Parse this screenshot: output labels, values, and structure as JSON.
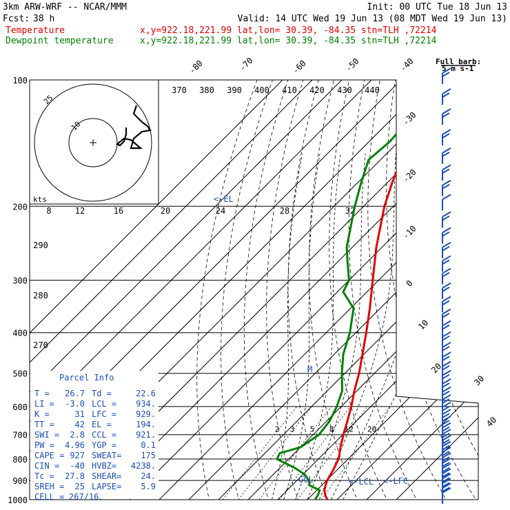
{
  "header": {
    "model": "3km ARW-WRF -- NCAR/MMM",
    "init": "Init: 00 UTC Tue 18 Jun 13",
    "fcst_label": "Fcst:",
    "fcst_value": "38 h",
    "valid": "Valid: 14 UTC Wed 19 Jun 13 (08 MDT Wed 19 Jun 13)"
  },
  "legend": [
    {
      "name": "Temperature",
      "info": "x,y=922.18,221.99   lat,lon= 30.39, -84.35   stn=TLH ,72214",
      "color": "#e00000"
    },
    {
      "name": "Dewpoint temperature",
      "info": "x,y=922.18,221.99   lat,lon= 30.39, -84.35   stn=TLH ,72214",
      "color": "#008000"
    }
  ],
  "barb_key": {
    "line1": "Full barb:",
    "line2": "5 m s-1"
  },
  "chart_data": {
    "type": "line",
    "diagram": "skew-T log-P",
    "pressure_levels": [
      100,
      200,
      300,
      400,
      500,
      600,
      700,
      800,
      900,
      1000
    ],
    "temperature_isotherm_labels": [
      "-80",
      "-70",
      "-60",
      "-50",
      "-40",
      "-30",
      "-20",
      "-10",
      "0",
      "10",
      "20",
      "30",
      "40"
    ],
    "theta_labels": [
      "370",
      "380",
      "390",
      "400",
      "410",
      "420",
      "430",
      "440"
    ],
    "theta_side_labels": [
      "290",
      "280",
      "270"
    ],
    "mixing_ratio_labels": [
      "2",
      "3",
      "5",
      "8",
      "12",
      "20"
    ],
    "hodograph": {
      "unit_label": "kts",
      "ring_labels": [
        "10",
        "25"
      ],
      "speed_axis_labels": [
        "8",
        "12",
        "16",
        "20",
        "24",
        "28",
        "32"
      ],
      "points": [
        [
          16.5,
          11
        ],
        [
          16.5,
          6
        ],
        [
          15,
          1
        ],
        [
          12,
          -2
        ],
        [
          10,
          -1
        ],
        [
          15,
          3
        ],
        [
          20,
          2
        ],
        [
          27,
          -4
        ],
        [
          20,
          -4
        ],
        [
          22,
          3
        ],
        [
          28,
          8
        ],
        [
          34,
          9
        ],
        [
          32,
          12
        ],
        [
          28,
          15
        ],
        [
          25,
          18
        ],
        [
          22,
          21
        ],
        [
          24,
          27
        ]
      ]
    },
    "series": [
      {
        "name": "Temperature",
        "color": "#e00000",
        "points": [
          [
            1000,
            26.7
          ],
          [
            975,
            24.5
          ],
          [
            950,
            22.6
          ],
          [
            925,
            21.3
          ],
          [
            900,
            20.2
          ],
          [
            850,
            18.7
          ],
          [
            800,
            16.8
          ],
          [
            750,
            13.5
          ],
          [
            700,
            10.2
          ],
          [
            650,
            7.0
          ],
          [
            600,
            3.4
          ],
          [
            550,
            -0.9
          ],
          [
            500,
            -5.2
          ],
          [
            450,
            -10.5
          ],
          [
            400,
            -16.5
          ],
          [
            350,
            -23.5
          ],
          [
            300,
            -32.0
          ],
          [
            250,
            -42.0
          ],
          [
            200,
            -53.0
          ],
          [
            175,
            -58.5
          ],
          [
            150,
            -64.0
          ],
          [
            130,
            -67.0
          ],
          [
            115,
            -68.0
          ],
          [
            100,
            -71.0
          ]
        ]
      },
      {
        "name": "Dewpoint temperature",
        "color": "#008000",
        "points": [
          [
            1000,
            22.6
          ],
          [
            975,
            22.0
          ],
          [
            950,
            21.0
          ],
          [
            925,
            16.0
          ],
          [
            900,
            14.0
          ],
          [
            870,
            10.5
          ],
          [
            840,
            5.0
          ],
          [
            800,
            -4.0
          ],
          [
            775,
            -5.0
          ],
          [
            750,
            0.0
          ],
          [
            700,
            2.0
          ],
          [
            650,
            1.0
          ],
          [
            600,
            -1.5
          ],
          [
            550,
            -5.0
          ],
          [
            500,
            -11.0
          ],
          [
            450,
            -17.0
          ],
          [
            400,
            -22.0
          ],
          [
            350,
            -29.0
          ],
          [
            320,
            -38.0
          ],
          [
            300,
            -40.0
          ],
          [
            270,
            -47.0
          ],
          [
            250,
            -52.0
          ],
          [
            200,
            -63.0
          ],
          [
            175,
            -69.0
          ],
          [
            155,
            -74.0
          ],
          [
            140,
            -73.0
          ],
          [
            125,
            -74.0
          ],
          [
            100,
            -76.0
          ]
        ]
      }
    ],
    "level_markers": [
      "<-EL",
      "<-LFC",
      "<-LCL",
      "CCL"
    ],
    "wind_barbs_pressure": [
      1000,
      975,
      950,
      925,
      900,
      875,
      850,
      825,
      800,
      775,
      750,
      725,
      700,
      675,
      650,
      625,
      600,
      575,
      550,
      525,
      500,
      475,
      450,
      425,
      400,
      375,
      350,
      325,
      300,
      280,
      260,
      240,
      220,
      200,
      185,
      170,
      155,
      140,
      125,
      112,
      100
    ],
    "wind_barbs_speed_ms": [
      5,
      10,
      10,
      10,
      10,
      10,
      10,
      10,
      10,
      10,
      10,
      10,
      10,
      10,
      10,
      10,
      10,
      10,
      10,
      10,
      10,
      10,
      10,
      10,
      10,
      10,
      10,
      10,
      10,
      10,
      10,
      10,
      10,
      5,
      10,
      10,
      10,
      10,
      10,
      10,
      10
    ]
  },
  "parcel_info": {
    "title": "Parcel Info",
    "rows": [
      {
        "k1": "T   =",
        "v1": "26.7",
        "k2": "Td  =",
        "v2": "22.6"
      },
      {
        "k1": "LI  =",
        "v1": "-3.0",
        "k2": "LCL =",
        "v2": "934."
      },
      {
        "k1": "K   =",
        "v1": "31",
        "k2": "LFC =",
        "v2": "929."
      },
      {
        "k1": "TT  =",
        "v1": "42",
        "k2": "EL  =",
        "v2": "194."
      },
      {
        "k1": "SWI =",
        "v1": "2.8",
        "k2": "CCL =",
        "v2": "921."
      },
      {
        "k1": "PW  =",
        "v1": "4.96",
        "k2": "YGP =",
        "v2": "0.1"
      },
      {
        "k1": "CAPE =",
        "v1": "927",
        "k2": "SWEAT=",
        "v2": "175"
      },
      {
        "k1": "CIN  =",
        "v1": "-40",
        "k2": "HVBZ=",
        "v2": "4238."
      },
      {
        "k1": "Tc  =",
        "v1": "27.8",
        "k2": "SHEAR=",
        "v2": "24."
      },
      {
        "k1": "SREH =",
        "v1": "25",
        "k2": "LAPSE=",
        "v2": "5.9"
      }
    ],
    "cell_label": "CELL =",
    "cell_value": "267/16"
  }
}
